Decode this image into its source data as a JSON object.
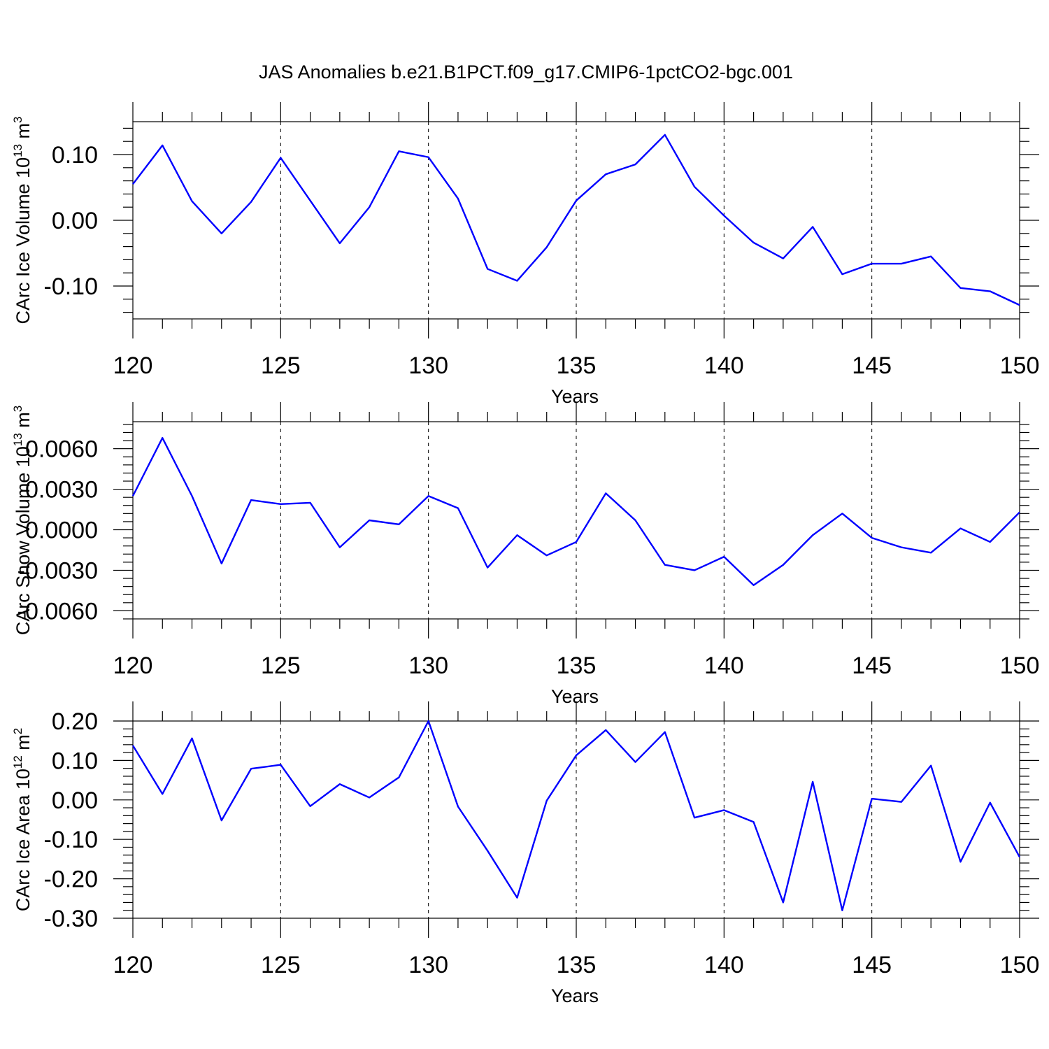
{
  "figure": {
    "title": "JAS Anomalies b.e21.B1PCT.f09_g17.CMIP6-1pctCO2-bgc.001"
  },
  "colors": {
    "series": "#0000ff",
    "axes": "#000000",
    "background": "#ffffff"
  },
  "chart_data": [
    {
      "type": "line",
      "ylabel": "CArc Ice Volume 10",
      "ylabel_sup": "13",
      "ylabel_unit": "m",
      "ylabel_unit_sup": "3",
      "xlabel": "Years",
      "xlim": [
        120,
        150
      ],
      "ylim": [
        -0.15,
        0.15
      ],
      "grid": "vertical dashed",
      "xticks": [
        120,
        125,
        130,
        135,
        140,
        145,
        150
      ],
      "xticklabels": [
        "120",
        "125",
        "130",
        "135",
        "140",
        "145",
        "150"
      ],
      "yticks": [
        0.1,
        0.0,
        -0.1
      ],
      "yticklabels": [
        "0.10",
        "0.00",
        "-0.10"
      ],
      "x": [
        120,
        121,
        122,
        123,
        124,
        125,
        126,
        127,
        128,
        129,
        130,
        131,
        132,
        133,
        134,
        135,
        136,
        137,
        138,
        139,
        140,
        141,
        142,
        143,
        144,
        145,
        146,
        147,
        148,
        149,
        150
      ],
      "values": [
        0.055,
        0.114,
        0.029,
        -0.02,
        0.028,
        0.095,
        0.03,
        -0.035,
        0.02,
        0.105,
        0.096,
        0.033,
        -0.074,
        -0.092,
        -0.041,
        0.03,
        0.07,
        0.085,
        0.13,
        0.051,
        0.007,
        -0.034,
        -0.058,
        -0.01,
        -0.082,
        -0.066,
        -0.066,
        -0.055,
        -0.103,
        -0.108,
        -0.129
      ]
    },
    {
      "type": "line",
      "ylabel": "CArc Snow Volume 10",
      "ylabel_sup": "13",
      "ylabel_unit": "m",
      "ylabel_unit_sup": "3",
      "xlabel": "Years",
      "xlim": [
        120,
        150
      ],
      "ylim": [
        -0.0066,
        0.008
      ],
      "grid": "vertical dashed",
      "xticks": [
        120,
        125,
        130,
        135,
        140,
        145,
        150
      ],
      "xticklabels": [
        "120",
        "125",
        "130",
        "135",
        "140",
        "145",
        "150"
      ],
      "yticks": [
        0.006,
        0.003,
        0.0,
        -0.003,
        -0.006
      ],
      "yticklabels": [
        "0.0060",
        "0.0030",
        "0.0000",
        "-0.0030",
        "-0.0060"
      ],
      "x": [
        120,
        121,
        122,
        123,
        124,
        125,
        126,
        127,
        128,
        129,
        130,
        131,
        132,
        133,
        134,
        135,
        136,
        137,
        138,
        139,
        140,
        141,
        142,
        143,
        144,
        145,
        146,
        147,
        148,
        149,
        150
      ],
      "values": [
        0.0025,
        0.0068,
        0.0025,
        -0.0025,
        0.0022,
        0.0019,
        0.002,
        -0.0013,
        0.0007,
        0.0004,
        0.0025,
        0.0016,
        -0.0028,
        -0.0004,
        -0.0019,
        -0.0009,
        0.0027,
        0.0007,
        -0.0026,
        -0.003,
        -0.002,
        -0.0041,
        -0.0026,
        -0.0004,
        0.0012,
        -0.0006,
        -0.0013,
        -0.0017,
        0.0001,
        -0.0009,
        0.0013
      ]
    },
    {
      "type": "line",
      "ylabel": "CArc Ice Area 10",
      "ylabel_sup": "12",
      "ylabel_unit": "m",
      "ylabel_unit_sup": "2",
      "xlabel": "Years",
      "xlim": [
        120,
        150
      ],
      "ylim": [
        -0.3,
        0.2
      ],
      "grid": "vertical dashed",
      "xticks": [
        120,
        125,
        130,
        135,
        140,
        145,
        150
      ],
      "xticklabels": [
        "120",
        "125",
        "130",
        "135",
        "140",
        "145",
        "150"
      ],
      "yticks": [
        0.2,
        0.1,
        0.0,
        -0.1,
        -0.2,
        -0.3
      ],
      "yticklabels": [
        "0.20",
        "0.10",
        "0.00",
        "-0.10",
        "-0.20",
        "-0.30"
      ],
      "x": [
        120,
        121,
        122,
        123,
        124,
        125,
        126,
        127,
        128,
        129,
        130,
        131,
        132,
        133,
        134,
        135,
        136,
        137,
        138,
        139,
        140,
        141,
        142,
        143,
        144,
        145,
        146,
        147,
        148,
        149,
        150
      ],
      "values": [
        0.138,
        0.015,
        0.156,
        -0.052,
        0.079,
        0.089,
        -0.016,
        0.04,
        0.006,
        0.057,
        0.2,
        -0.017,
        -0.129,
        -0.248,
        -0.002,
        0.113,
        0.177,
        0.096,
        0.172,
        -0.045,
        -0.026,
        -0.056,
        -0.26,
        0.046,
        -0.28,
        0.003,
        -0.005,
        0.087,
        -0.157,
        -0.007,
        -0.145
      ]
    }
  ]
}
